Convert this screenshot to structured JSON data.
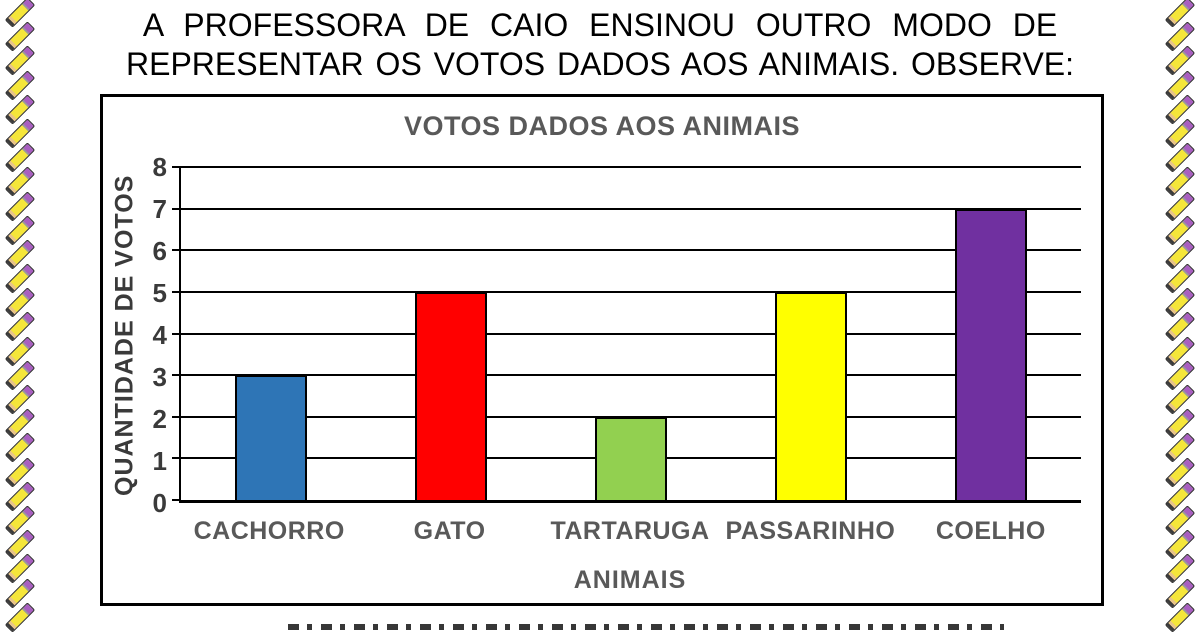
{
  "page": {
    "instruction_line1": "A PROFESSORA DE CAIO ENSINOU OUTRO MODO DE",
    "instruction_line2": "REPRESENTAR OS VOTOS DADOS AOS ANIMAIS. OBSERVE:"
  },
  "chart_data": {
    "type": "bar",
    "title": "VOTOS DADOS AOS ANIMAIS",
    "categories": [
      "CACHORRO",
      "GATO",
      "TARTARUGA",
      "PASSARINHO",
      "COELHO"
    ],
    "values": [
      3,
      5,
      2,
      5,
      7
    ],
    "bar_colors": [
      "#2E75B6",
      "#FF0000",
      "#92D050",
      "#FFFF00",
      "#7030A0"
    ],
    "xlabel": "ANIMAIS",
    "ylabel": "QUANTIDADE DE VOTOS",
    "ylim": [
      0,
      8
    ],
    "yticks": [
      0,
      1,
      2,
      3,
      4,
      5,
      6,
      7,
      8
    ],
    "grid": "horizontal",
    "legend": "none",
    "title_color": "#595959",
    "axis_number_color": "#3a3a3a",
    "axis_title_color": "#3a3a3a",
    "category_label_color": "#595959",
    "frame_color": "#000000"
  },
  "decor": {
    "left_border": "pencil-pattern",
    "right_border": "pencil-pattern",
    "pencil_body_color": "#F5E63A",
    "pencil_eraser_color": "#A85FC0"
  }
}
